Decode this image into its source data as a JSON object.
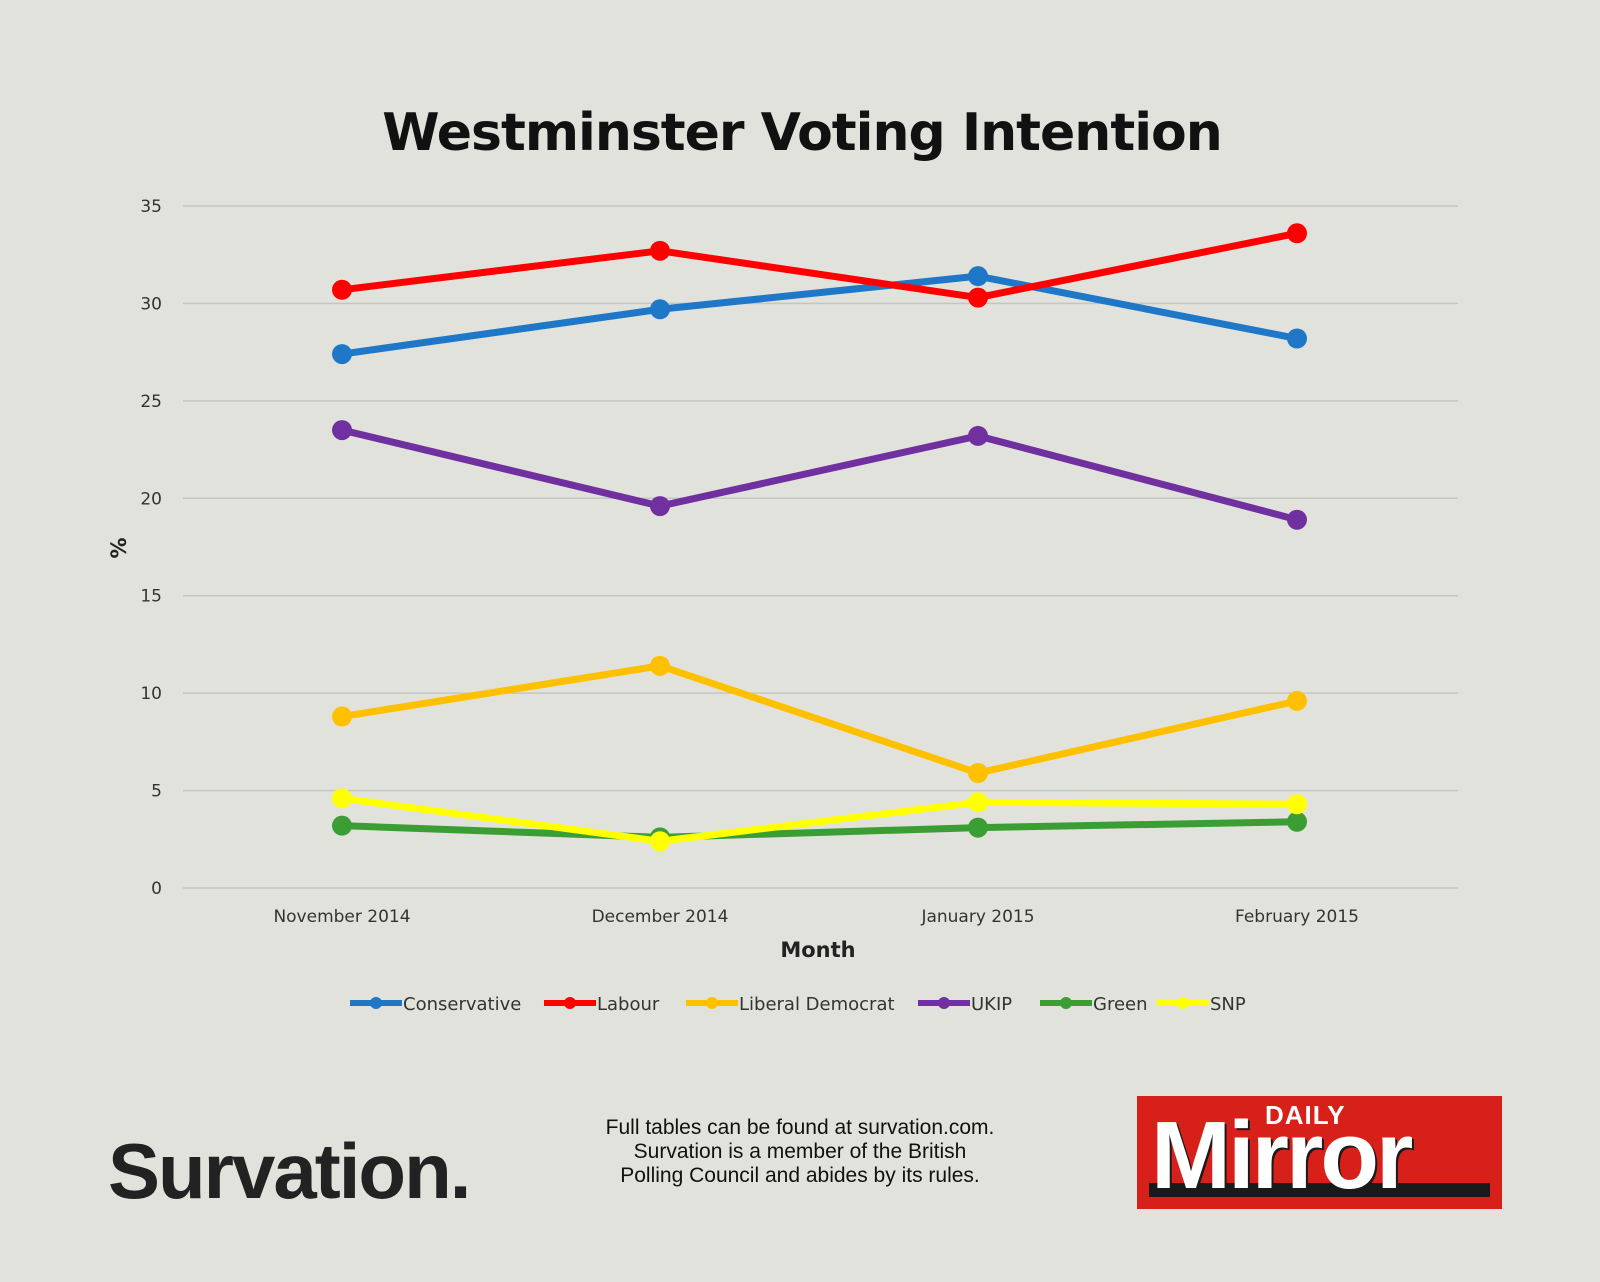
{
  "chart_data": {
    "type": "line",
    "title": "Westminster Voting Intention",
    "xlabel": "Month",
    "ylabel": "%",
    "categories": [
      "November 2014",
      "December 2014",
      "January 2015",
      "February 2015"
    ],
    "ylim": [
      0,
      35
    ],
    "yticks": [
      0,
      5,
      10,
      15,
      20,
      25,
      30,
      35
    ],
    "grid": true,
    "legend_position": "bottom",
    "series": [
      {
        "name": "Conservative",
        "color": "#1f77c8",
        "values": [
          27.4,
          29.7,
          31.4,
          28.2
        ]
      },
      {
        "name": "Labour",
        "color": "#ff0000",
        "values": [
          30.7,
          32.7,
          30.3,
          33.6
        ]
      },
      {
        "name": "Liberal Democrat",
        "color": "#ffc000",
        "values": [
          8.8,
          11.4,
          5.9,
          9.6
        ]
      },
      {
        "name": "UKIP",
        "color": "#7030a0",
        "values": [
          23.5,
          19.6,
          23.2,
          18.9
        ]
      },
      {
        "name": "Green",
        "color": "#3a9e35",
        "values": [
          3.2,
          2.6,
          3.1,
          3.4
        ]
      },
      {
        "name": "SNP",
        "color": "#ffff00",
        "values": [
          4.6,
          2.4,
          4.4,
          4.3
        ]
      }
    ]
  },
  "footer": {
    "brand": "Survation.",
    "note_lines": [
      "Full tables can be found at survation.com.",
      "Survation is a member of the British",
      "Polling Council and abides by its rules."
    ],
    "logo_daily": "DAILY",
    "logo_word": "Mirror"
  }
}
